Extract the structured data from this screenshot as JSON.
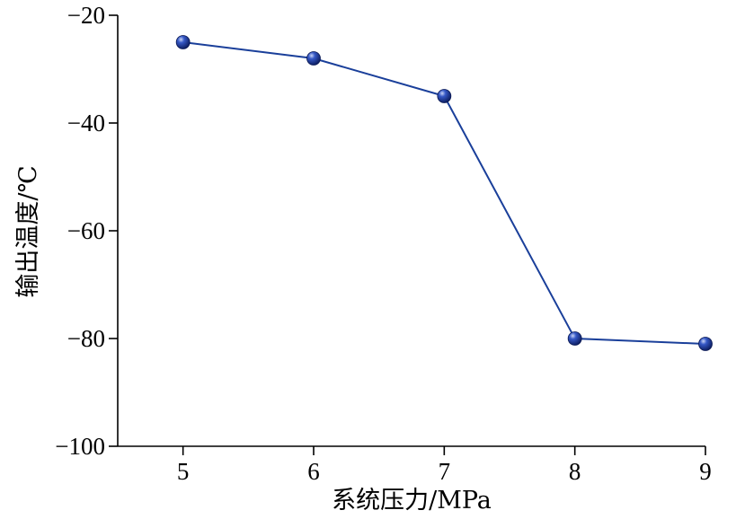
{
  "chart_data": {
    "type": "line",
    "xlabel": "系统压力/MPa",
    "ylabel": "输出温度/℃",
    "x": [
      5,
      6,
      7,
      8,
      9
    ],
    "xlim": [
      4.5,
      9
    ],
    "ylim": [
      -100,
      -20
    ],
    "x_ticks": [
      {
        "value": 5,
        "label": "5"
      },
      {
        "value": 6,
        "label": "6"
      },
      {
        "value": 7,
        "label": "7"
      },
      {
        "value": 8,
        "label": "8"
      },
      {
        "value": 9,
        "label": "9"
      }
    ],
    "y_ticks": [
      {
        "value": -20,
        "label": "−20"
      },
      {
        "value": -40,
        "label": "−40"
      },
      {
        "value": -60,
        "label": "−60"
      },
      {
        "value": -80,
        "label": "−80"
      },
      {
        "value": -100,
        "label": "−100"
      }
    ],
    "grid": false,
    "series": [
      {
        "values": [
          -25,
          -28,
          -35,
          -80,
          -81
        ],
        "color": "#1a3f9a",
        "marker": "sphere"
      }
    ]
  }
}
